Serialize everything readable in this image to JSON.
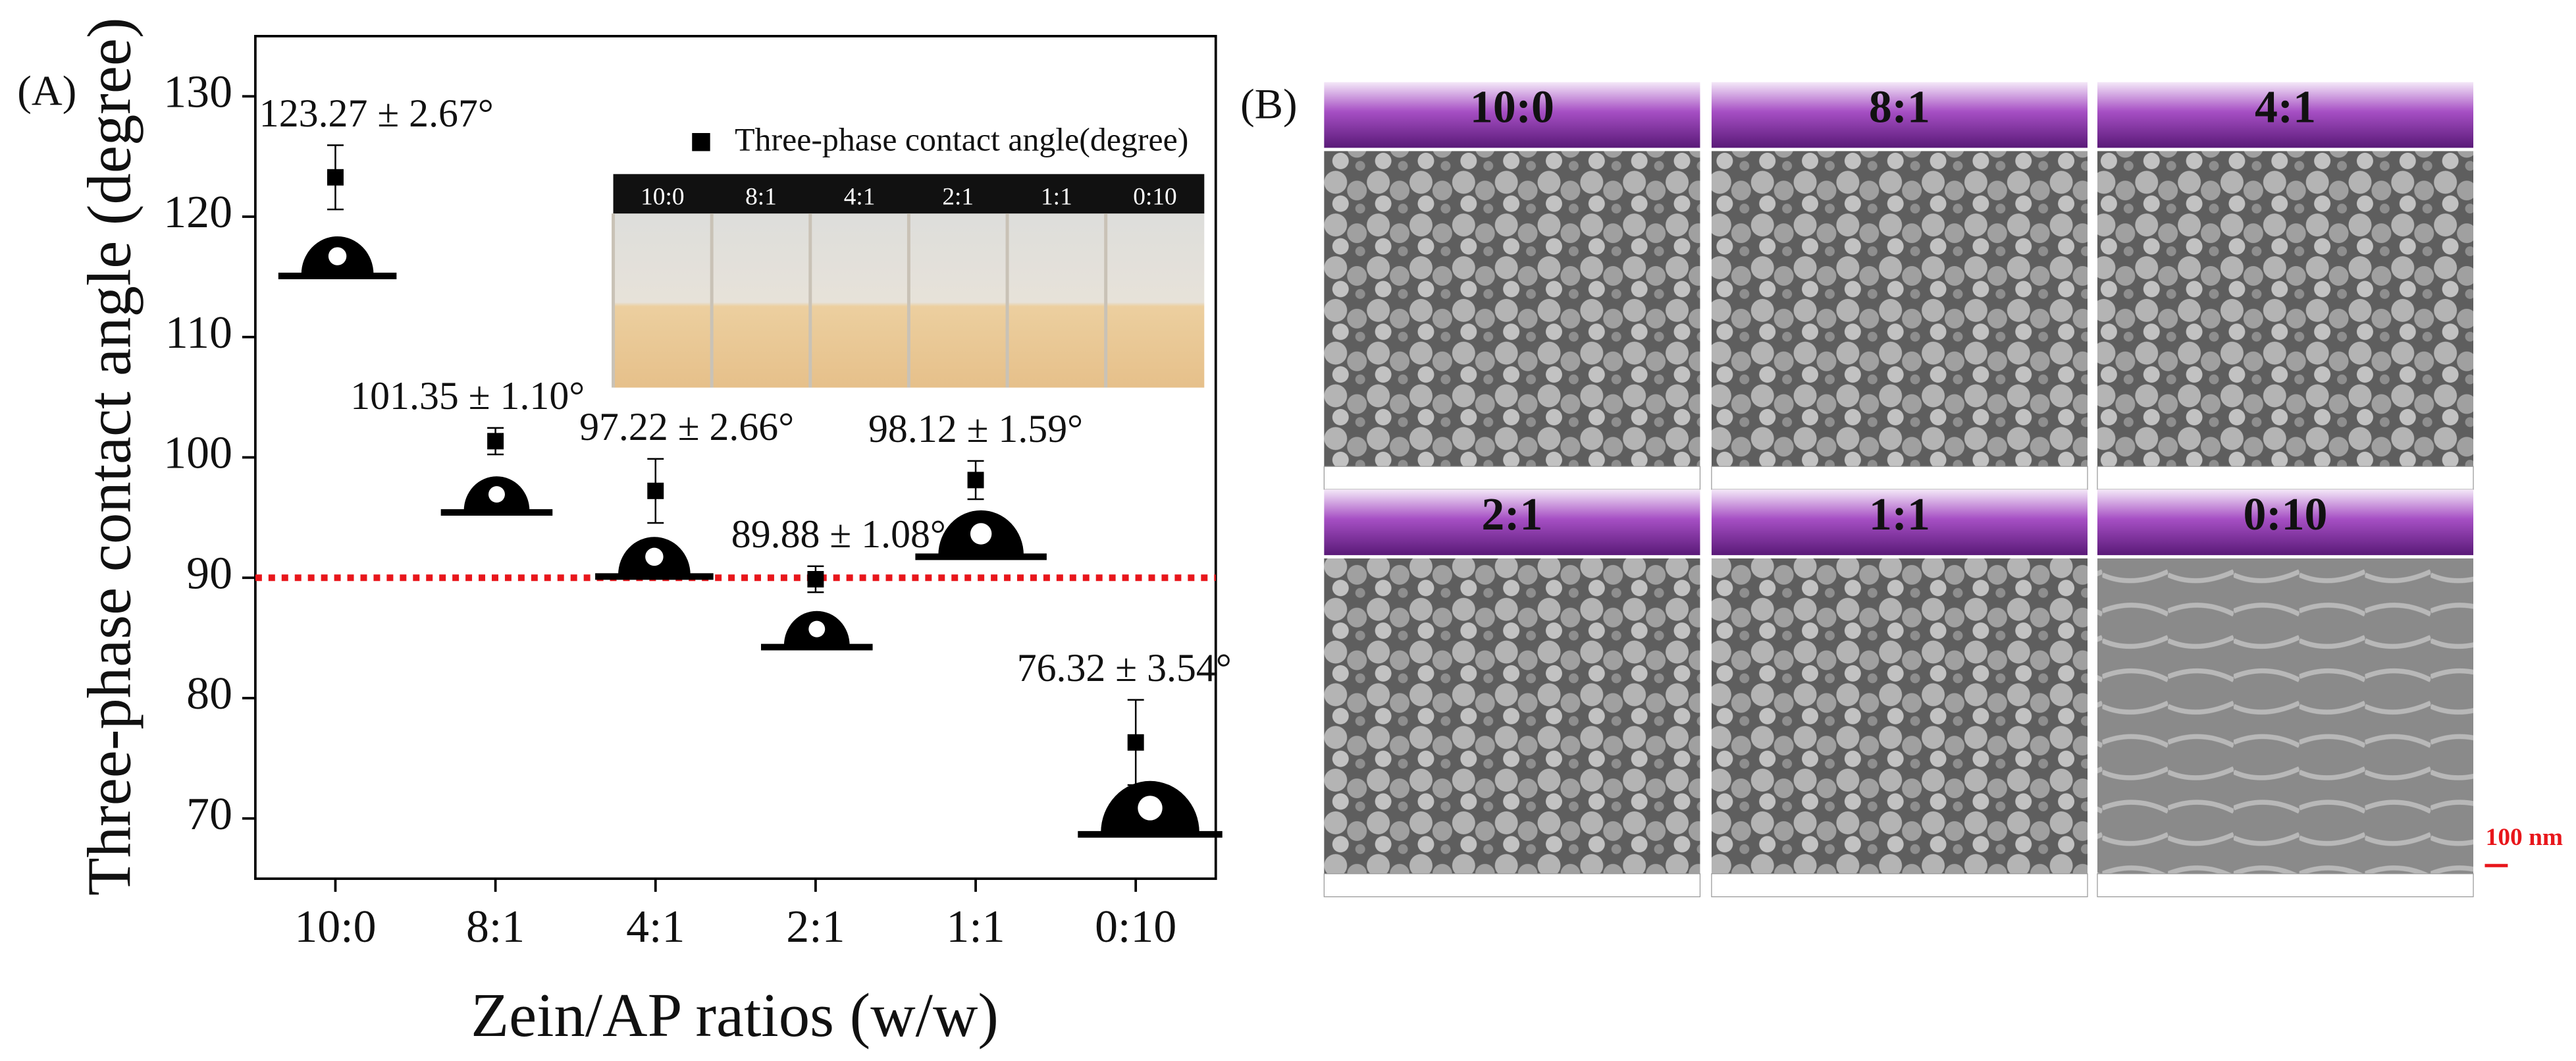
{
  "chart_data": {
    "type": "scatter",
    "panel_label": "(A)",
    "x_label": "Zein/AP ratios (w/w)",
    "y_label": "Three-phase contact angle (degree)",
    "categories": [
      "10:0",
      "8:1",
      "4:1",
      "2:1",
      "1:1",
      "0:10"
    ],
    "series": [
      {
        "name": "Three-phase contact angle(degree)",
        "color": "#000000",
        "values": [
          123.27,
          101.35,
          97.22,
          89.88,
          98.12,
          76.32
        ],
        "errors": [
          2.67,
          1.1,
          2.66,
          1.08,
          1.59,
          3.54
        ],
        "value_labels": [
          "123.27 ± 2.67°",
          "101.35 ± 1.10°",
          "97.22 ± 2.66°",
          "89.88 ± 1.08°",
          "98.12 ± 1.59°",
          "76.32 ± 3.54°"
        ]
      }
    ],
    "ylim": [
      65,
      135
    ],
    "yticks": [
      70,
      80,
      90,
      100,
      110,
      120,
      130
    ],
    "reference_line": {
      "value": 90,
      "color": "#e8161b"
    },
    "legend": "top-right",
    "inset_labels": [
      "10:0",
      "8:1",
      "4:1",
      "2:1",
      "1:1",
      "0:10"
    ]
  },
  "panel_b": {
    "panel_label": "(B)",
    "images": [
      "10:0",
      "8:1",
      "4:1",
      "2:1",
      "1:1",
      "0:10"
    ],
    "scale_bar": "100 nm"
  }
}
